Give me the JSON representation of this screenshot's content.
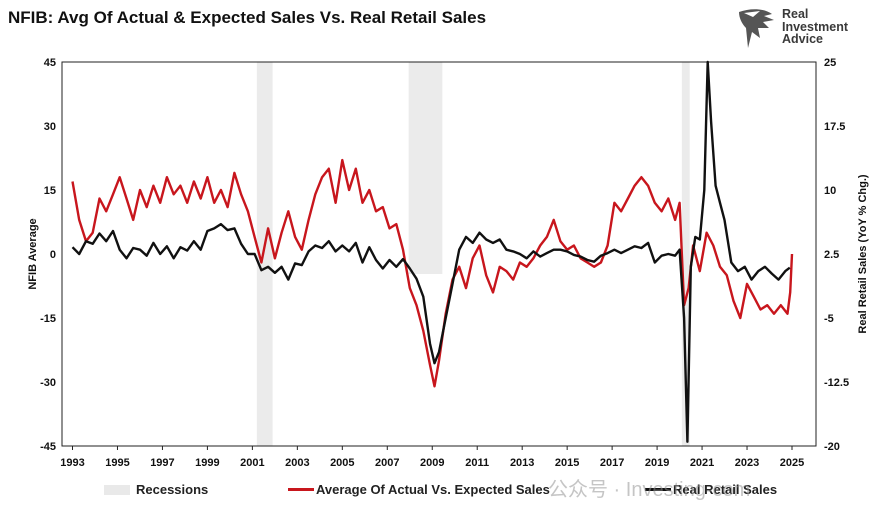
{
  "title": "NFIB: Avg Of Actual & Expected Sales Vs. Real Retail Sales",
  "logo": {
    "line1": "Real",
    "line2": "Investment",
    "line3": "Advice"
  },
  "watermark": "公众号 · Investing-com",
  "colors": {
    "red": "#c8161d",
    "black": "#111111",
    "recession": "#ebebeb"
  },
  "chart_data": {
    "type": "line",
    "title": "NFIB: Avg Of Actual & Expected Sales Vs. Real Retail Sales",
    "xlabel": "",
    "ylabel_left": "NFIB Average",
    "ylabel_right": "Real Retail Sales (YoY % Chg.)",
    "xlim": [
      1993,
      2025.6
    ],
    "ylim_left": [
      -45,
      45
    ],
    "ylim_right": [
      -20,
      25
    ],
    "x_ticks": [
      "1993",
      "1995",
      "1997",
      "1999",
      "2001",
      "2003",
      "2005",
      "2007",
      "2009",
      "2011",
      "2013",
      "2015",
      "2017",
      "2019",
      "2021",
      "2023",
      "2025"
    ],
    "y_ticks_left": [
      "45",
      "30",
      "15",
      "0",
      "-15",
      "-30",
      "-45"
    ],
    "y_ticks_right": [
      "25",
      "17.5",
      "10",
      "2.5",
      "-5",
      "-12.5",
      "-20"
    ],
    "grid": false,
    "legend_position": "bottom",
    "recessions": [
      [
        2001.2,
        2001.9
      ],
      [
        2007.95,
        2009.45
      ],
      [
        2020.1,
        2020.45
      ]
    ],
    "legend": [
      {
        "name": "Recessions"
      },
      {
        "name": "Average Of Actual Vs. Expected Sales"
      },
      {
        "name": "Real Retail Sales"
      }
    ],
    "series": [
      {
        "name": "Average Of Actual Vs. Expected Sales",
        "axis": "left",
        "points": [
          [
            1993.0,
            17
          ],
          [
            1993.3,
            8
          ],
          [
            1993.6,
            3
          ],
          [
            1993.9,
            5
          ],
          [
            1994.2,
            13
          ],
          [
            1994.5,
            10
          ],
          [
            1994.8,
            14
          ],
          [
            1995.1,
            18
          ],
          [
            1995.4,
            13
          ],
          [
            1995.7,
            8
          ],
          [
            1996.0,
            15
          ],
          [
            1996.3,
            11
          ],
          [
            1996.6,
            16
          ],
          [
            1996.9,
            12
          ],
          [
            1997.2,
            18
          ],
          [
            1997.5,
            14
          ],
          [
            1997.8,
            16
          ],
          [
            1998.1,
            12
          ],
          [
            1998.4,
            17
          ],
          [
            1998.7,
            13
          ],
          [
            1999.0,
            18
          ],
          [
            1999.3,
            12
          ],
          [
            1999.6,
            15
          ],
          [
            1999.9,
            11
          ],
          [
            2000.2,
            19
          ],
          [
            2000.5,
            14
          ],
          [
            2000.8,
            10
          ],
          [
            2001.1,
            4
          ],
          [
            2001.4,
            -2
          ],
          [
            2001.7,
            6
          ],
          [
            2002.0,
            -1
          ],
          [
            2002.3,
            5
          ],
          [
            2002.6,
            10
          ],
          [
            2002.9,
            4
          ],
          [
            2003.2,
            1
          ],
          [
            2003.5,
            8
          ],
          [
            2003.8,
            14
          ],
          [
            2004.1,
            18
          ],
          [
            2004.4,
            20
          ],
          [
            2004.7,
            12
          ],
          [
            2005.0,
            22
          ],
          [
            2005.3,
            15
          ],
          [
            2005.6,
            20
          ],
          [
            2005.9,
            12
          ],
          [
            2006.2,
            15
          ],
          [
            2006.5,
            10
          ],
          [
            2006.8,
            11
          ],
          [
            2007.1,
            6
          ],
          [
            2007.4,
            7
          ],
          [
            2007.7,
            1
          ],
          [
            2008.0,
            -8
          ],
          [
            2008.3,
            -12
          ],
          [
            2008.6,
            -18
          ],
          [
            2008.9,
            -26
          ],
          [
            2009.1,
            -31
          ],
          [
            2009.3,
            -25
          ],
          [
            2009.6,
            -14
          ],
          [
            2009.9,
            -6
          ],
          [
            2010.2,
            -3
          ],
          [
            2010.5,
            -8
          ],
          [
            2010.8,
            -1
          ],
          [
            2011.1,
            2
          ],
          [
            2011.4,
            -5
          ],
          [
            2011.7,
            -9
          ],
          [
            2012.0,
            -3
          ],
          [
            2012.3,
            -4
          ],
          [
            2012.6,
            -6
          ],
          [
            2012.9,
            -2
          ],
          [
            2013.2,
            -3
          ],
          [
            2013.5,
            -1
          ],
          [
            2013.8,
            2
          ],
          [
            2014.1,
            4
          ],
          [
            2014.4,
            8
          ],
          [
            2014.7,
            3
          ],
          [
            2015.0,
            1
          ],
          [
            2015.3,
            2
          ],
          [
            2015.6,
            -1
          ],
          [
            2015.9,
            -2
          ],
          [
            2016.2,
            -3
          ],
          [
            2016.5,
            -2
          ],
          [
            2016.8,
            2
          ],
          [
            2017.1,
            12
          ],
          [
            2017.4,
            10
          ],
          [
            2017.7,
            13
          ],
          [
            2018.0,
            16
          ],
          [
            2018.3,
            18
          ],
          [
            2018.6,
            16
          ],
          [
            2018.9,
            12
          ],
          [
            2019.2,
            10
          ],
          [
            2019.5,
            13
          ],
          [
            2019.8,
            8
          ],
          [
            2020.0,
            12
          ],
          [
            2020.2,
            -12
          ],
          [
            2020.4,
            -8
          ],
          [
            2020.6,
            2
          ],
          [
            2020.9,
            -4
          ],
          [
            2021.2,
            5
          ],
          [
            2021.5,
            2
          ],
          [
            2021.8,
            -3
          ],
          [
            2022.1,
            -5
          ],
          [
            2022.4,
            -11
          ],
          [
            2022.7,
            -15
          ],
          [
            2023.0,
            -7
          ],
          [
            2023.3,
            -10
          ],
          [
            2023.6,
            -13
          ],
          [
            2023.9,
            -12
          ],
          [
            2024.2,
            -14
          ],
          [
            2024.5,
            -12
          ],
          [
            2024.8,
            -14
          ],
          [
            2024.92,
            -9
          ],
          [
            2025.0,
            0
          ]
        ]
      },
      {
        "name": "Real Retail Sales",
        "axis": "right",
        "points": [
          [
            1993.0,
            3.3
          ],
          [
            1993.3,
            2.5
          ],
          [
            1993.6,
            4.0
          ],
          [
            1993.9,
            3.7
          ],
          [
            1994.2,
            4.9
          ],
          [
            1994.5,
            4.0
          ],
          [
            1994.8,
            5.2
          ],
          [
            1995.1,
            3.0
          ],
          [
            1995.4,
            2.0
          ],
          [
            1995.7,
            3.2
          ],
          [
            1996.0,
            3.0
          ],
          [
            1996.3,
            2.3
          ],
          [
            1996.6,
            3.8
          ],
          [
            1996.9,
            2.5
          ],
          [
            1997.2,
            3.4
          ],
          [
            1997.5,
            2.0
          ],
          [
            1997.8,
            3.3
          ],
          [
            1998.1,
            2.9
          ],
          [
            1998.4,
            4.0
          ],
          [
            1998.7,
            3.0
          ],
          [
            1999.0,
            5.2
          ],
          [
            1999.3,
            5.5
          ],
          [
            1999.6,
            6.0
          ],
          [
            1999.9,
            5.3
          ],
          [
            2000.2,
            5.5
          ],
          [
            2000.5,
            3.7
          ],
          [
            2000.8,
            2.5
          ],
          [
            2001.1,
            2.5
          ],
          [
            2001.4,
            0.6
          ],
          [
            2001.7,
            1.0
          ],
          [
            2002.0,
            0.3
          ],
          [
            2002.3,
            1.0
          ],
          [
            2002.6,
            -0.5
          ],
          [
            2002.9,
            1.4
          ],
          [
            2003.2,
            1.2
          ],
          [
            2003.5,
            2.8
          ],
          [
            2003.8,
            3.5
          ],
          [
            2004.1,
            3.2
          ],
          [
            2004.4,
            4.0
          ],
          [
            2004.7,
            2.8
          ],
          [
            2005.0,
            3.5
          ],
          [
            2005.3,
            2.8
          ],
          [
            2005.6,
            3.8
          ],
          [
            2005.9,
            1.5
          ],
          [
            2006.2,
            3.3
          ],
          [
            2006.5,
            1.8
          ],
          [
            2006.8,
            0.8
          ],
          [
            2007.1,
            1.8
          ],
          [
            2007.4,
            1.0
          ],
          [
            2007.7,
            1.9
          ],
          [
            2008.0,
            0.8
          ],
          [
            2008.3,
            -0.4
          ],
          [
            2008.6,
            -2.5
          ],
          [
            2008.9,
            -8.0
          ],
          [
            2009.1,
            -10.3
          ],
          [
            2009.3,
            -9.0
          ],
          [
            2009.6,
            -5.0
          ],
          [
            2009.9,
            -1.0
          ],
          [
            2010.2,
            3.0
          ],
          [
            2010.5,
            4.5
          ],
          [
            2010.8,
            3.8
          ],
          [
            2011.1,
            5.0
          ],
          [
            2011.4,
            4.2
          ],
          [
            2011.7,
            3.8
          ],
          [
            2012.0,
            4.2
          ],
          [
            2012.3,
            3.0
          ],
          [
            2012.6,
            2.8
          ],
          [
            2012.9,
            2.5
          ],
          [
            2013.2,
            2.0
          ],
          [
            2013.5,
            2.8
          ],
          [
            2013.8,
            2.2
          ],
          [
            2014.1,
            2.6
          ],
          [
            2014.4,
            3.0
          ],
          [
            2014.7,
            3.0
          ],
          [
            2015.0,
            2.8
          ],
          [
            2015.3,
            2.4
          ],
          [
            2015.6,
            2.2
          ],
          [
            2015.9,
            1.8
          ],
          [
            2016.2,
            1.6
          ],
          [
            2016.5,
            2.3
          ],
          [
            2016.8,
            2.6
          ],
          [
            2017.1,
            3.0
          ],
          [
            2017.4,
            2.6
          ],
          [
            2017.7,
            3.0
          ],
          [
            2018.0,
            3.4
          ],
          [
            2018.3,
            3.2
          ],
          [
            2018.6,
            3.8
          ],
          [
            2018.9,
            1.5
          ],
          [
            2019.2,
            2.3
          ],
          [
            2019.5,
            2.5
          ],
          [
            2019.8,
            2.3
          ],
          [
            2020.0,
            3.0
          ],
          [
            2020.2,
            -5.0
          ],
          [
            2020.35,
            -19.5
          ],
          [
            2020.5,
            1.0
          ],
          [
            2020.7,
            4.5
          ],
          [
            2020.9,
            4.2
          ],
          [
            2021.1,
            10.0
          ],
          [
            2021.25,
            25.0
          ],
          [
            2021.4,
            18.0
          ],
          [
            2021.6,
            10.5
          ],
          [
            2021.8,
            8.5
          ],
          [
            2022.0,
            6.5
          ],
          [
            2022.3,
            1.5
          ],
          [
            2022.6,
            0.5
          ],
          [
            2022.9,
            1.0
          ],
          [
            2023.2,
            -0.5
          ],
          [
            2023.5,
            0.5
          ],
          [
            2023.8,
            1.0
          ],
          [
            2024.1,
            0.2
          ],
          [
            2024.4,
            -0.5
          ],
          [
            2024.7,
            0.5
          ],
          [
            2024.9,
            0.9
          ]
        ]
      }
    ]
  }
}
